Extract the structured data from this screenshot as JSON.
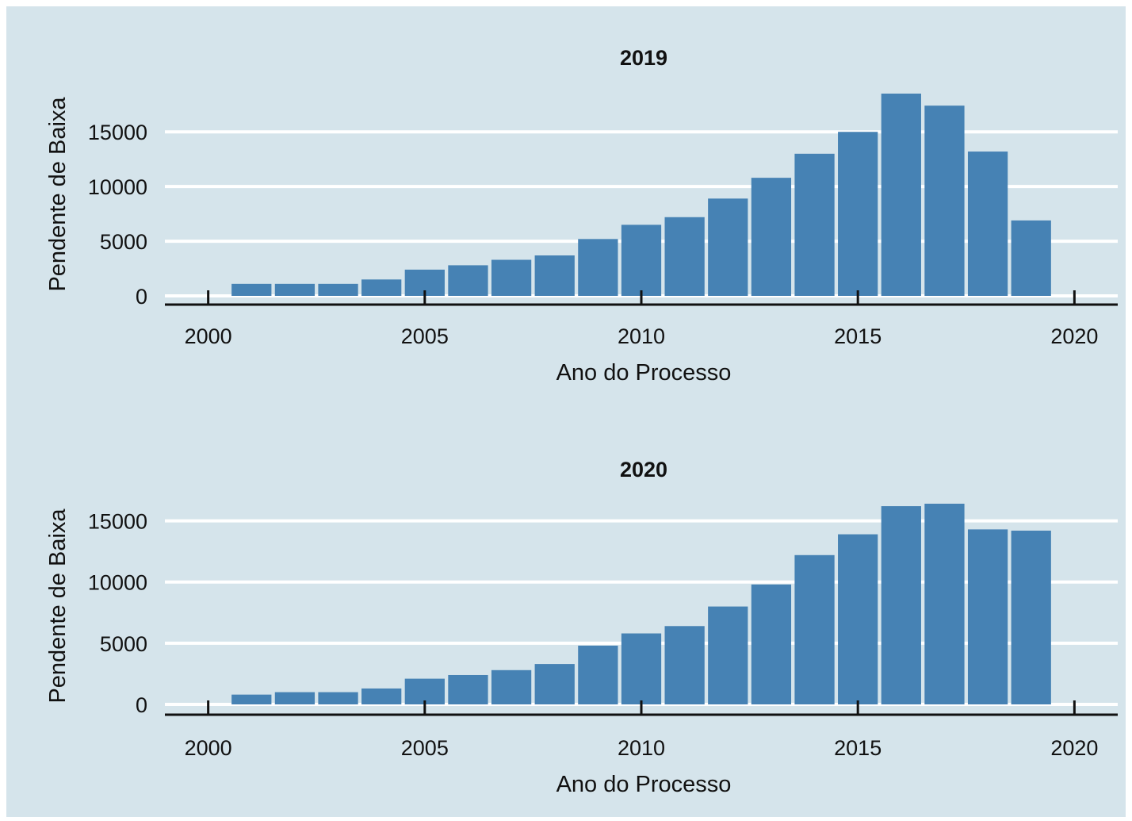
{
  "chart_data": [
    {
      "type": "bar",
      "title": "2019",
      "xlabel": "Ano do Processo",
      "ylabel": "Pendente de Baixa",
      "x": [
        2001,
        2002,
        2003,
        2004,
        2005,
        2006,
        2007,
        2008,
        2009,
        2010,
        2011,
        2012,
        2013,
        2014,
        2015,
        2016,
        2017,
        2018,
        2019
      ],
      "values": [
        1100,
        1100,
        1100,
        1500,
        2400,
        2800,
        3300,
        3700,
        5200,
        6500,
        7200,
        8900,
        10800,
        13000,
        15000,
        18500,
        17400,
        13200,
        6900
      ],
      "xlim": [
        1999,
        2021
      ],
      "ylim": [
        0,
        18500
      ],
      "xticks": [
        "2000",
        "2005",
        "2010",
        "2015",
        "2020"
      ],
      "yticks": [
        "0",
        "5000",
        "10000",
        "15000"
      ],
      "grid": true,
      "bar_color": "#4682b4"
    },
    {
      "type": "bar",
      "title": "2020",
      "xlabel": "Ano do Processo",
      "ylabel": "Pendente de Baixa",
      "x": [
        2001,
        2002,
        2003,
        2004,
        2005,
        2006,
        2007,
        2008,
        2009,
        2010,
        2011,
        2012,
        2013,
        2014,
        2015,
        2016,
        2017,
        2018,
        2019
      ],
      "values": [
        800,
        1000,
        1000,
        1300,
        2100,
        2400,
        2800,
        3300,
        4800,
        5800,
        6400,
        8000,
        9800,
        12200,
        13900,
        16200,
        16400,
        14300,
        14200
      ],
      "xlim": [
        1999,
        2021
      ],
      "ylim": [
        0,
        16400
      ],
      "xticks": [
        "2000",
        "2005",
        "2010",
        "2015",
        "2020"
      ],
      "yticks": [
        "0",
        "5000",
        "10000",
        "15000"
      ],
      "grid": true,
      "bar_color": "#4682b4"
    }
  ]
}
